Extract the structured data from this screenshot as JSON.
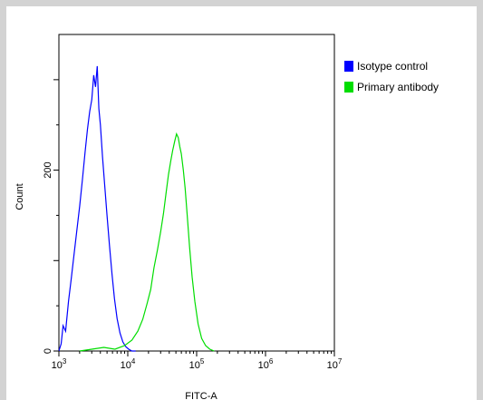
{
  "chart_data": {
    "type": "line",
    "title": "",
    "xlabel": "FITC-A",
    "ylabel": "Count",
    "x_scale": "log",
    "xlim": [
      1000,
      10000000
    ],
    "ylim": [
      0,
      350
    ],
    "x_ticks": [
      {
        "value": 1000,
        "base": "10",
        "exp": "3"
      },
      {
        "value": 10000,
        "base": "10",
        "exp": "4"
      },
      {
        "value": 100000,
        "base": "10",
        "exp": "5"
      },
      {
        "value": 1000000,
        "base": "10",
        "exp": "6"
      },
      {
        "value": 10000000,
        "base": "10",
        "exp": "7"
      }
    ],
    "y_ticks": [
      {
        "value": 0,
        "label": "0"
      },
      {
        "value": 200,
        "label": "200"
      }
    ],
    "grid": false,
    "legend_position": "top-right",
    "series": [
      {
        "name": "Isotype control",
        "color": "#0000ff",
        "x": [
          1000,
          1080,
          1150,
          1250,
          1380,
          1500,
          1650,
          1800,
          2000,
          2200,
          2400,
          2600,
          2800,
          3000,
          3200,
          3400,
          3600,
          3800,
          4000,
          4300,
          4600,
          5000,
          5400,
          5900,
          6400,
          7000,
          7700,
          8500,
          9300,
          10300,
          11500,
          13000
        ],
        "y": [
          0,
          8,
          28,
          22,
          55,
          78,
          105,
          130,
          160,
          190,
          220,
          245,
          265,
          278,
          305,
          292,
          315,
          268,
          250,
          215,
          185,
          150,
          118,
          85,
          58,
          36,
          20,
          10,
          5,
          2,
          0,
          0
        ]
      },
      {
        "name": "Primary antibody",
        "color": "#00dd00",
        "x": [
          2000,
          3000,
          4500,
          6500,
          9000,
          11500,
          14000,
          16500,
          19000,
          21500,
          24000,
          27000,
          30000,
          33000,
          36000,
          39000,
          42000,
          45000,
          48000,
          51000,
          54000,
          57000,
          60000,
          64000,
          68000,
          73000,
          79000,
          86000,
          94000,
          105000,
          118000,
          135000,
          155000,
          180000
        ],
        "y": [
          0,
          2,
          4,
          2,
          6,
          12,
          22,
          35,
          52,
          68,
          92,
          112,
          132,
          152,
          175,
          195,
          210,
          222,
          232,
          240,
          236,
          226,
          218,
          200,
          180,
          150,
          115,
          82,
          55,
          30,
          14,
          6,
          2,
          0
        ]
      }
    ]
  },
  "legend": {
    "items": [
      {
        "label": "Isotype control",
        "color": "#0000ff"
      },
      {
        "label": "Primary antibody",
        "color": "#00dd00"
      }
    ]
  }
}
